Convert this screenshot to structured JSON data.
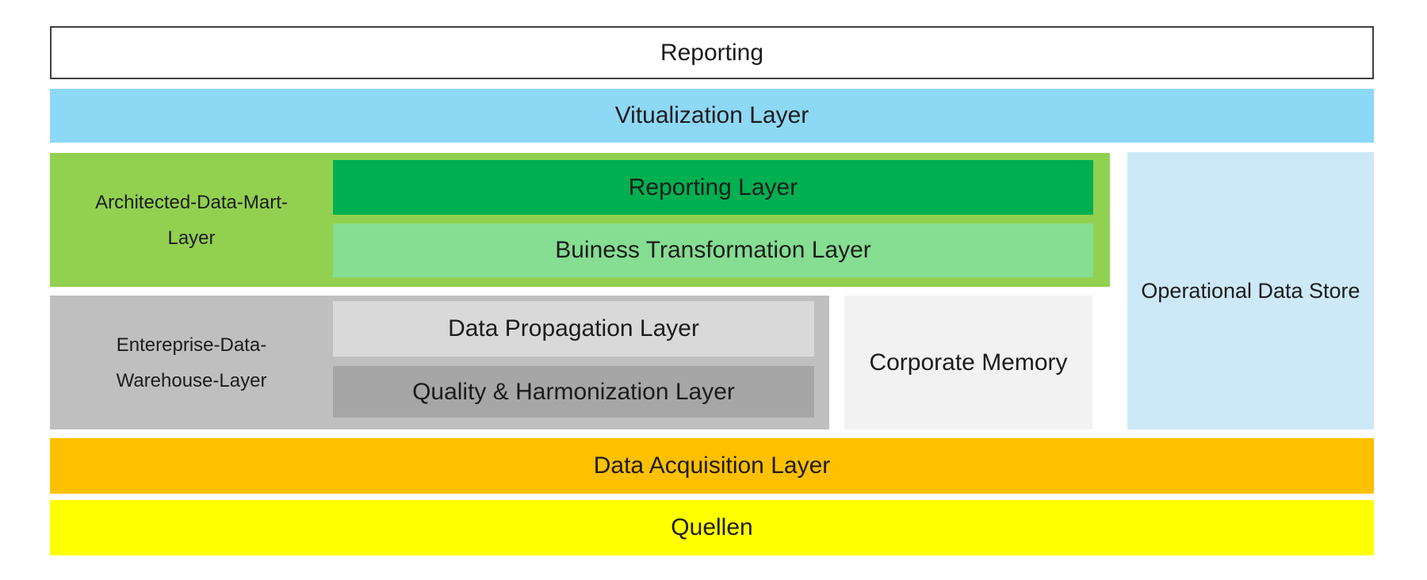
{
  "diagram": {
    "title": "Reporting",
    "visualization_layer": "Vitualization Layer",
    "architected_data_mart": {
      "label_line1": "Architected-Data-Mart-",
      "label_line2": "Layer",
      "reporting_layer": "Reporting Layer",
      "business_transformation_layer": "Buiness Transformation Layer"
    },
    "enterprise_data_warehouse": {
      "label_line1": "Entereprise-Data-",
      "label_line2": "Warehouse-Layer",
      "data_propagation_layer": "Data Propagation Layer",
      "quality_harmonization_layer": "Quality & Harmonization Layer"
    },
    "corporate_memory": "Corporate Memory",
    "operational_data_store": "Operational Data Store",
    "data_acquisition_layer": "Data Acquisition Layer",
    "sources_layer": "Quellen",
    "colors": {
      "visualization_blue": "#8DD8F5",
      "architected_data_mart_green": "#92D050",
      "reporting_layer_green": "#00B050",
      "business_transformation_green": "#85DE92",
      "enterprise_warehouse_gray": "#BFBFBF",
      "data_propagation_gray": "#D9D9D9",
      "quality_harmonization_gray": "#A6A6A6",
      "corporate_memory_gray": "#F2F2F2",
      "operational_data_store_blue": "#CDE9F7",
      "data_acquisition_orange": "#FFC000",
      "quellen_yellow": "#FFFF00",
      "text": "#1C1C1C",
      "reporting_box_border": "#3F3F3F"
    }
  }
}
